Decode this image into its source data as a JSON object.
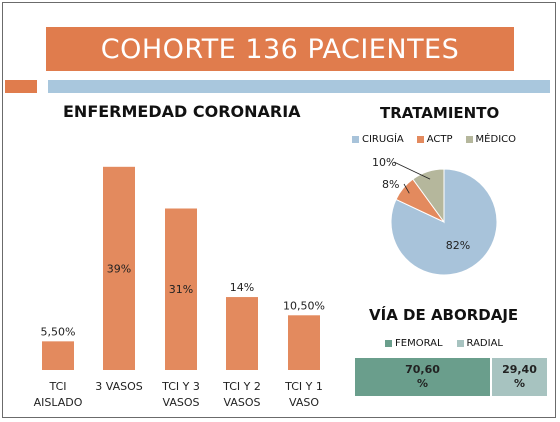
{
  "title": "COHORTE 136 PACIENTES",
  "chart_data": [
    {
      "type": "bar",
      "title": "ENFERMEDAD CORONARIA",
      "categories": [
        [
          "TCI",
          "AISLADO"
        ],
        [
          "3 VASOS"
        ],
        [
          "TCI Y 3",
          "VASOS"
        ],
        [
          "TCI Y 2",
          "VASOS"
        ],
        [
          "TCI Y 1",
          "VASO"
        ]
      ],
      "values": [
        5.5,
        39,
        31,
        14,
        10.5
      ],
      "data_labels": [
        "5,50%",
        "39%",
        "31%",
        "14%",
        "10,50%"
      ],
      "label_inside": [
        false,
        true,
        true,
        false,
        false
      ],
      "ylim": [
        0,
        40
      ],
      "grid": false,
      "color": "#e38a5e"
    },
    {
      "type": "pie",
      "title": "TRATAMIENTO",
      "labels": [
        "CIRUGÍA",
        "ACTP",
        "MÉDICO"
      ],
      "values": [
        82,
        8,
        10
      ],
      "data_labels": [
        "82%",
        "8%",
        "10%"
      ],
      "colors": [
        "#a8c3da",
        "#e38a5e",
        "#b5b79c"
      ],
      "legend": "top"
    },
    {
      "type": "bar",
      "orientation": "horizontal-stacked",
      "title": "VÍA DE ABORDAJE",
      "series": [
        {
          "name": "FEMORAL",
          "value": 70.6,
          "label_lines": [
            "70,60",
            "%"
          ]
        },
        {
          "name": "RADIAL",
          "value": 29.4,
          "label_lines": [
            "29,40",
            "%"
          ]
        }
      ],
      "colors": [
        "#6a9e8c",
        "#a7c3c0"
      ],
      "legend": "top"
    }
  ]
}
